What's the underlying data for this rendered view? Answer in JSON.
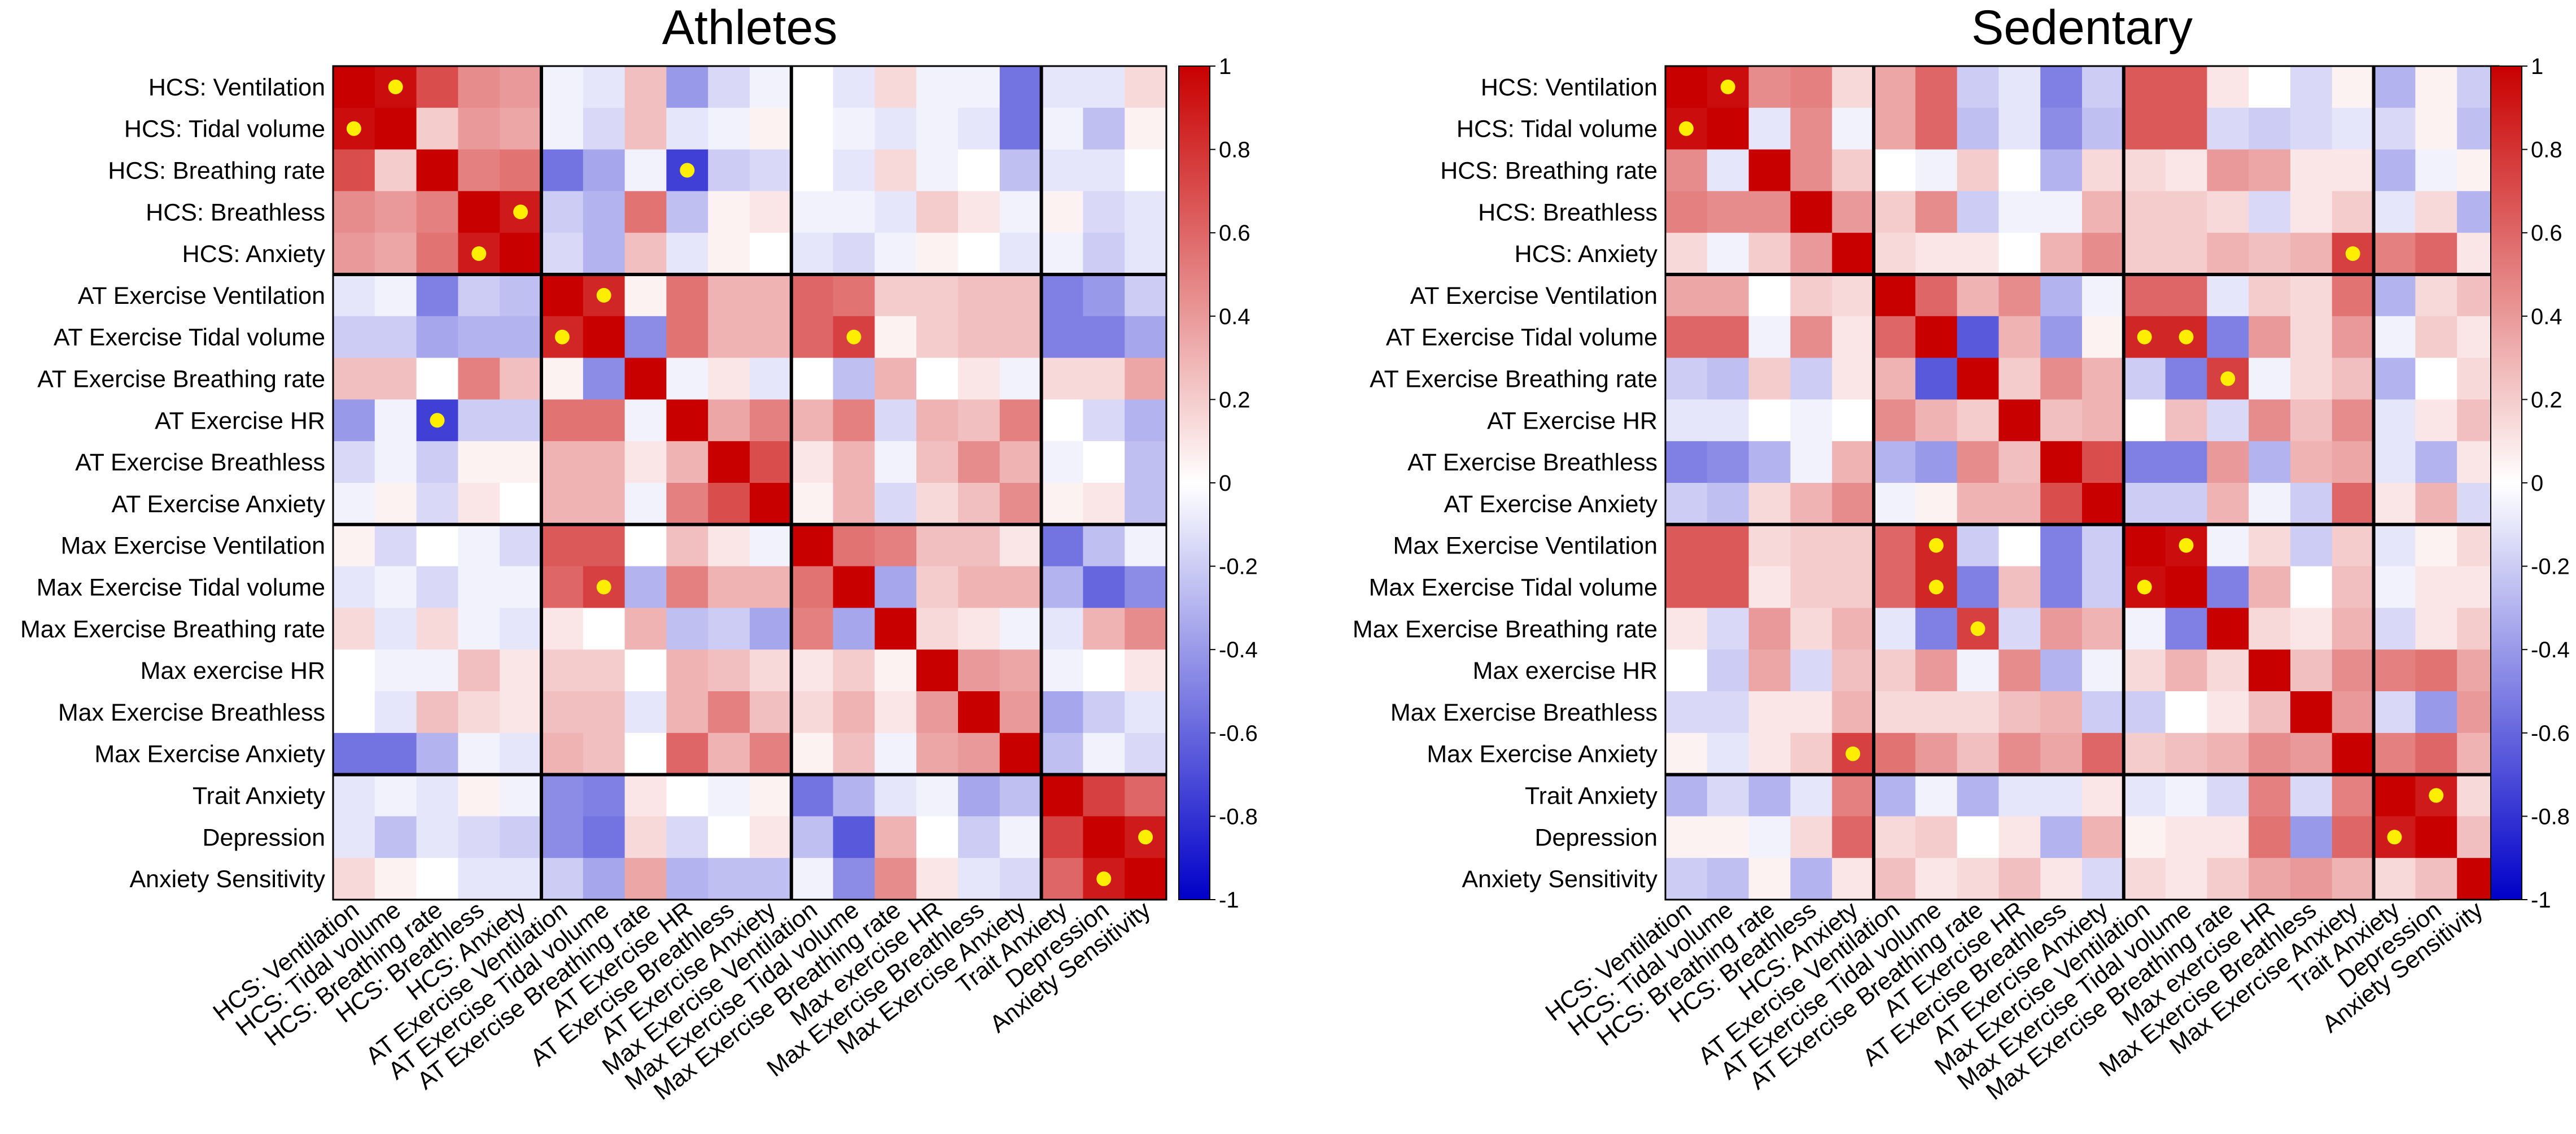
{
  "chart_data": [
    {
      "type": "heatmap",
      "title": "Athletes",
      "rows": [
        "HCS: Ventilation",
        "HCS: Tidal volume",
        "HCS: Breathing rate",
        "HCS: Breathless",
        "HCS: Anxiety",
        "AT Exercise Ventilation",
        "AT Exercise Tidal volume",
        "AT Exercise Breathing rate",
        "AT Exercise HR",
        "AT Exercise Breathless",
        "AT Exercise Anxiety",
        "Max Exercise Ventilation",
        "Max Exercise Tidal volume",
        "Max Exercise Breathing rate",
        "Max exercise HR",
        "Max Exercise Breathless",
        "Max Exercise Anxiety",
        "Trait Anxiety",
        "Depression",
        "Anxiety Sensitivity"
      ],
      "columns": [
        "HCS: Ventilation",
        "HCS: Tidal volume",
        "HCS: Breathing rate",
        "HCS: Breathless",
        "HCS: Anxiety",
        "AT Exercise Ventilation",
        "AT Exercise Tidal volume",
        "AT Exercise Breathing rate",
        "AT Exercise HR",
        "AT Exercise Breathless",
        "AT Exercise Anxiety",
        "Max Exercise Ventilation",
        "Max Exercise Tidal volume",
        "Max Exercise Breathing rate",
        "Max exercise HR",
        "Max Exercise Breathless",
        "Max Exercise Anxiety",
        "Trait Anxiety",
        "Depression",
        "Anxiety Sensitivity"
      ],
      "values": [
        [
          1.0,
          0.95,
          0.7,
          0.45,
          0.4,
          -0.05,
          -0.1,
          0.25,
          -0.4,
          -0.15,
          -0.05,
          0.0,
          -0.1,
          0.15,
          -0.05,
          -0.05,
          -0.55,
          -0.1,
          -0.1,
          0.15
        ],
        [
          0.95,
          1.0,
          0.2,
          0.4,
          0.35,
          -0.05,
          -0.15,
          0.25,
          -0.1,
          -0.05,
          0.05,
          0.0,
          -0.05,
          -0.1,
          -0.05,
          -0.1,
          -0.55,
          -0.05,
          -0.25,
          0.05
        ],
        [
          0.7,
          0.2,
          1.0,
          0.5,
          0.55,
          -0.55,
          -0.35,
          -0.05,
          -0.75,
          -0.2,
          -0.15,
          0.0,
          -0.1,
          0.15,
          -0.05,
          0.0,
          -0.25,
          -0.1,
          -0.1,
          0.0
        ],
        [
          0.45,
          0.4,
          0.5,
          1.0,
          0.9,
          -0.2,
          -0.3,
          0.55,
          -0.25,
          0.05,
          0.1,
          -0.05,
          -0.05,
          -0.1,
          0.2,
          0.1,
          -0.05,
          0.05,
          -0.15,
          -0.1
        ],
        [
          0.4,
          0.35,
          0.55,
          0.9,
          1.0,
          -0.15,
          -0.3,
          0.25,
          -0.1,
          0.05,
          0.0,
          -0.1,
          -0.15,
          -0.05,
          0.05,
          0.0,
          -0.1,
          -0.05,
          -0.2,
          -0.1
        ],
        [
          -0.1,
          -0.05,
          -0.5,
          -0.2,
          -0.25,
          1.0,
          0.85,
          0.05,
          0.55,
          0.3,
          0.3,
          0.6,
          0.55,
          0.2,
          0.2,
          0.25,
          0.25,
          -0.5,
          -0.4,
          -0.2
        ],
        [
          -0.2,
          -0.2,
          -0.35,
          -0.3,
          -0.3,
          0.85,
          1.0,
          -0.45,
          0.55,
          0.3,
          0.3,
          0.6,
          0.75,
          0.05,
          0.2,
          0.25,
          0.25,
          -0.5,
          -0.5,
          -0.35
        ],
        [
          0.25,
          0.25,
          0.0,
          0.5,
          0.25,
          0.05,
          -0.45,
          1.0,
          -0.05,
          0.1,
          -0.1,
          0.0,
          -0.25,
          0.3,
          0.0,
          0.1,
          -0.05,
          0.15,
          0.15,
          0.35
        ],
        [
          -0.4,
          -0.05,
          -0.75,
          -0.2,
          -0.2,
          0.55,
          0.55,
          -0.05,
          1.0,
          0.35,
          0.5,
          0.3,
          0.5,
          -0.15,
          0.3,
          0.25,
          0.5,
          0.0,
          -0.15,
          -0.3
        ],
        [
          -0.15,
          -0.05,
          -0.2,
          0.05,
          0.05,
          0.3,
          0.3,
          0.1,
          0.3,
          1.0,
          0.7,
          0.1,
          0.3,
          -0.05,
          0.25,
          0.45,
          0.3,
          -0.05,
          0.0,
          -0.25
        ],
        [
          -0.05,
          0.05,
          -0.15,
          0.1,
          0.0,
          0.3,
          0.3,
          -0.05,
          0.5,
          0.7,
          1.0,
          0.05,
          0.3,
          -0.15,
          0.15,
          0.25,
          0.45,
          0.05,
          0.1,
          -0.25
        ],
        [
          0.05,
          -0.15,
          0.0,
          -0.05,
          -0.15,
          0.65,
          0.65,
          0.0,
          0.25,
          0.1,
          -0.05,
          1.0,
          0.55,
          0.5,
          0.25,
          0.25,
          0.1,
          -0.55,
          -0.25,
          -0.05
        ],
        [
          -0.1,
          -0.05,
          -0.15,
          -0.05,
          -0.05,
          0.6,
          0.75,
          -0.3,
          0.5,
          0.3,
          0.3,
          0.55,
          1.0,
          -0.35,
          0.2,
          0.3,
          0.3,
          -0.3,
          -0.6,
          -0.45
        ],
        [
          0.15,
          -0.1,
          0.15,
          -0.05,
          -0.1,
          0.1,
          0.0,
          0.3,
          -0.25,
          -0.2,
          -0.35,
          0.5,
          -0.35,
          1.0,
          0.15,
          0.1,
          -0.05,
          -0.1,
          0.3,
          0.45
        ],
        [
          0.0,
          -0.05,
          -0.05,
          0.25,
          0.1,
          0.2,
          0.2,
          0.0,
          0.3,
          0.25,
          0.15,
          0.1,
          0.2,
          0.05,
          1.0,
          0.4,
          0.35,
          -0.05,
          0.0,
          0.1
        ],
        [
          0.0,
          -0.1,
          0.25,
          0.15,
          0.1,
          0.25,
          0.25,
          -0.1,
          0.3,
          0.5,
          0.25,
          0.15,
          0.3,
          0.1,
          0.4,
          1.0,
          0.4,
          -0.35,
          -0.2,
          -0.1
        ],
        [
          -0.55,
          -0.55,
          -0.3,
          -0.05,
          -0.1,
          0.3,
          0.25,
          0.0,
          0.6,
          0.3,
          0.5,
          0.05,
          0.25,
          -0.05,
          0.35,
          0.4,
          1.0,
          -0.25,
          -0.05,
          -0.15
        ],
        [
          -0.1,
          -0.05,
          -0.1,
          0.05,
          -0.05,
          -0.45,
          -0.5,
          0.1,
          0.0,
          -0.05,
          0.05,
          -0.55,
          -0.3,
          -0.1,
          -0.05,
          -0.35,
          -0.25,
          1.0,
          0.75,
          0.6
        ],
        [
          -0.1,
          -0.25,
          -0.1,
          -0.15,
          -0.2,
          -0.45,
          -0.55,
          0.15,
          -0.15,
          0.0,
          0.1,
          -0.25,
          -0.65,
          0.3,
          0.0,
          -0.2,
          -0.05,
          0.75,
          1.0,
          0.9
        ],
        [
          0.15,
          0.05,
          0.0,
          -0.1,
          -0.1,
          -0.2,
          -0.35,
          0.35,
          -0.3,
          -0.25,
          -0.25,
          -0.05,
          -0.45,
          0.45,
          0.1,
          -0.1,
          -0.15,
          0.6,
          0.9,
          1.0
        ]
      ],
      "significant_markers": [
        [
          0,
          1
        ],
        [
          1,
          0
        ],
        [
          2,
          8
        ],
        [
          3,
          4
        ],
        [
          4,
          3
        ],
        [
          5,
          6
        ],
        [
          6,
          5
        ],
        [
          6,
          12
        ],
        [
          8,
          2
        ],
        [
          12,
          6
        ],
        [
          18,
          19
        ],
        [
          19,
          18
        ]
      ],
      "group_boundaries_after_row": [
        4,
        10,
        16
      ],
      "colorbar": {
        "range": [
          -1,
          1
        ],
        "ticks": [
          "1",
          "0.8",
          "0.6",
          "0.4",
          "0.2",
          "0",
          "-0.2",
          "-0.4",
          "-0.6",
          "-0.8",
          "-1"
        ]
      }
    },
    {
      "type": "heatmap",
      "title": "Sedentary",
      "rows": [
        "HCS: Ventilation",
        "HCS: Tidal volume",
        "HCS: Breathing rate",
        "HCS: Breathless",
        "HCS: Anxiety",
        "AT Exercise Ventilation",
        "AT Exercise Tidal volume",
        "AT Exercise Breathing rate",
        "AT Exercise HR",
        "AT Exercise Breathless",
        "AT Exercise Anxiety",
        "Max Exercise Ventilation",
        "Max Exercise Tidal volume",
        "Max Exercise Breathing rate",
        "Max exercise HR",
        "Max Exercise Breathless",
        "Max Exercise Anxiety",
        "Trait Anxiety",
        "Depression",
        "Anxiety Sensitivity"
      ],
      "columns": [
        "HCS: Ventilation",
        "HCS: Tidal volume",
        "HCS: Breathing rate",
        "HCS: Breathless",
        "HCS: Anxiety",
        "AT Exercise Ventilation",
        "AT Exercise Tidal volume",
        "AT Exercise Breathing rate",
        "AT Exercise HR",
        "AT Exercise Breathless",
        "AT Exercise Anxiety",
        "Max Exercise Ventilation",
        "Max Exercise Tidal volume",
        "Max Exercise Breathing rate",
        "Max exercise HR",
        "Max Exercise Breathless",
        "Max Exercise Anxiety",
        "Trait Anxiety",
        "Depression",
        "Anxiety Sensitivity"
      ],
      "values": [
        [
          1.0,
          0.95,
          0.45,
          0.5,
          0.15,
          0.35,
          0.6,
          -0.2,
          -0.1,
          -0.5,
          -0.2,
          0.65,
          0.65,
          0.1,
          0.0,
          -0.15,
          0.05,
          -0.3,
          0.05,
          -0.2
        ],
        [
          0.95,
          1.0,
          -0.1,
          0.45,
          -0.05,
          0.35,
          0.6,
          -0.25,
          -0.1,
          -0.45,
          -0.25,
          0.65,
          0.65,
          -0.15,
          -0.2,
          -0.15,
          -0.1,
          -0.15,
          0.05,
          -0.25
        ],
        [
          0.45,
          -0.1,
          1.0,
          0.45,
          0.2,
          0.0,
          -0.05,
          0.2,
          0.0,
          -0.3,
          0.15,
          0.15,
          0.1,
          0.4,
          0.35,
          0.1,
          0.1,
          -0.3,
          -0.05,
          0.05
        ],
        [
          0.5,
          0.45,
          0.45,
          1.0,
          0.4,
          0.2,
          0.45,
          -0.2,
          -0.05,
          -0.05,
          0.3,
          0.2,
          0.2,
          0.15,
          -0.15,
          0.1,
          0.2,
          -0.1,
          0.15,
          -0.3
        ],
        [
          0.15,
          -0.05,
          0.2,
          0.4,
          1.0,
          0.15,
          0.1,
          0.1,
          0.0,
          0.3,
          0.45,
          0.2,
          0.2,
          0.3,
          0.25,
          0.3,
          0.75,
          0.5,
          0.6,
          0.1
        ],
        [
          0.35,
          0.35,
          0.0,
          0.2,
          0.15,
          1.0,
          0.6,
          0.3,
          0.45,
          -0.3,
          -0.05,
          0.6,
          0.6,
          -0.1,
          0.2,
          0.15,
          0.55,
          -0.3,
          0.15,
          0.25
        ],
        [
          0.6,
          0.6,
          -0.05,
          0.45,
          0.1,
          0.6,
          1.0,
          -0.65,
          0.3,
          -0.4,
          0.05,
          0.85,
          0.85,
          -0.5,
          0.4,
          0.15,
          0.4,
          -0.05,
          0.2,
          0.1
        ],
        [
          -0.2,
          -0.25,
          0.2,
          -0.2,
          0.1,
          0.3,
          -0.65,
          1.0,
          0.2,
          0.45,
          0.3,
          -0.2,
          -0.5,
          0.75,
          -0.05,
          0.15,
          0.25,
          -0.3,
          0.0,
          0.15
        ],
        [
          -0.1,
          -0.1,
          0.0,
          -0.05,
          0.0,
          0.45,
          0.3,
          0.2,
          1.0,
          0.25,
          0.3,
          0.0,
          0.25,
          -0.15,
          0.45,
          0.25,
          0.45,
          -0.1,
          0.1,
          0.25
        ],
        [
          -0.5,
          -0.45,
          -0.3,
          -0.05,
          0.3,
          -0.3,
          -0.4,
          0.45,
          0.25,
          1.0,
          0.7,
          -0.5,
          -0.5,
          0.4,
          -0.3,
          0.3,
          0.35,
          -0.1,
          -0.3,
          0.1
        ],
        [
          -0.2,
          -0.25,
          0.15,
          0.3,
          0.45,
          -0.05,
          0.05,
          0.3,
          0.3,
          0.7,
          1.0,
          -0.2,
          -0.2,
          0.3,
          -0.05,
          -0.2,
          0.6,
          0.1,
          0.3,
          -0.15
        ],
        [
          0.65,
          0.65,
          0.15,
          0.2,
          0.2,
          0.6,
          0.85,
          -0.2,
          0.0,
          -0.5,
          -0.2,
          1.0,
          0.95,
          -0.05,
          0.15,
          -0.2,
          0.2,
          -0.1,
          0.05,
          0.15
        ],
        [
          0.65,
          0.65,
          0.1,
          0.2,
          0.2,
          0.6,
          0.85,
          -0.5,
          0.25,
          -0.5,
          -0.2,
          0.95,
          1.0,
          -0.5,
          0.3,
          0.0,
          0.25,
          -0.05,
          0.1,
          0.1
        ],
        [
          0.1,
          -0.15,
          0.4,
          0.15,
          0.3,
          -0.1,
          -0.5,
          0.75,
          -0.15,
          0.4,
          0.3,
          -0.05,
          -0.5,
          1.0,
          0.15,
          0.1,
          0.3,
          -0.15,
          0.1,
          0.2
        ],
        [
          0.0,
          -0.2,
          0.35,
          -0.15,
          0.25,
          0.2,
          0.4,
          -0.05,
          0.45,
          -0.3,
          -0.05,
          0.15,
          0.3,
          0.15,
          1.0,
          0.25,
          0.45,
          0.5,
          0.55,
          0.35
        ],
        [
          -0.15,
          -0.15,
          0.1,
          0.1,
          0.3,
          0.15,
          0.15,
          0.15,
          0.25,
          0.3,
          -0.2,
          -0.2,
          0.0,
          0.1,
          0.25,
          1.0,
          0.4,
          -0.15,
          -0.4,
          0.4
        ],
        [
          0.05,
          -0.1,
          0.1,
          0.2,
          0.75,
          0.55,
          0.4,
          0.25,
          0.45,
          0.35,
          0.6,
          0.2,
          0.25,
          0.3,
          0.45,
          0.4,
          1.0,
          0.5,
          0.6,
          0.3
        ],
        [
          -0.3,
          -0.15,
          -0.3,
          -0.1,
          0.5,
          -0.3,
          -0.05,
          -0.3,
          -0.1,
          -0.1,
          0.1,
          -0.1,
          -0.05,
          -0.15,
          0.5,
          -0.15,
          0.5,
          1.0,
          0.9,
          0.15
        ],
        [
          0.05,
          0.05,
          -0.05,
          0.15,
          0.6,
          0.15,
          0.2,
          0.0,
          0.1,
          -0.3,
          0.3,
          0.05,
          0.1,
          0.1,
          0.55,
          -0.4,
          0.6,
          0.9,
          1.0,
          0.25
        ],
        [
          -0.2,
          -0.25,
          0.05,
          -0.3,
          0.1,
          0.25,
          0.1,
          0.15,
          0.25,
          0.1,
          -0.15,
          0.15,
          0.1,
          0.2,
          0.35,
          0.4,
          0.3,
          0.15,
          0.25,
          1.0
        ]
      ],
      "significant_markers": [
        [
          0,
          1
        ],
        [
          1,
          0
        ],
        [
          4,
          16
        ],
        [
          6,
          11
        ],
        [
          6,
          12
        ],
        [
          7,
          13
        ],
        [
          11,
          6
        ],
        [
          11,
          12
        ],
        [
          12,
          6
        ],
        [
          12,
          11
        ],
        [
          13,
          7
        ],
        [
          16,
          4
        ],
        [
          17,
          18
        ],
        [
          18,
          17
        ]
      ],
      "group_boundaries_after_row": [
        4,
        10,
        16
      ],
      "colorbar": {
        "range": [
          -1,
          1
        ],
        "ticks": [
          "1",
          "0.8",
          "0.6",
          "0.4",
          "0.2",
          "0",
          "-0.2",
          "-0.4",
          "-0.6",
          "-0.8",
          "-1"
        ]
      }
    }
  ],
  "colors": {
    "negative_end": "#0000c8",
    "zero": "#ffffff",
    "positive_end": "#c80000",
    "marker": "#ffee00",
    "grid_line": "#000000"
  }
}
